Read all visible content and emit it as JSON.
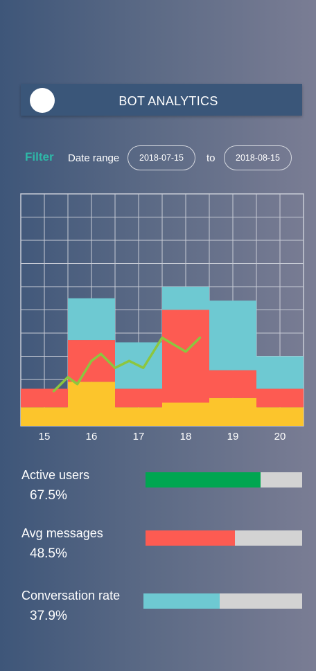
{
  "header": {
    "title": "BOT ANALYTICS"
  },
  "filter": {
    "label": "Filter",
    "range_label": "Date range",
    "start_date": "2018-07-15",
    "to_label": "to",
    "end_date": "2018-08-15"
  },
  "colors": {
    "segment_bottom": "#fcc52c",
    "segment_middle": "#fd5b52",
    "segment_top": "#6ec9d2",
    "line": "#8cc63f",
    "grid": "#c8ccd6"
  },
  "chart_data": {
    "type": "bar",
    "stacked": true,
    "categories": [
      "15",
      "16",
      "17",
      "18",
      "19",
      "20"
    ],
    "series": [
      {
        "values": [
          8,
          19,
          8,
          10,
          12,
          8
        ]
      },
      {
        "values": [
          8,
          18,
          8,
          40,
          12,
          8
        ]
      },
      {
        "values": [
          0,
          18,
          20,
          10,
          30,
          14
        ]
      }
    ],
    "line_points": [
      {
        "x": 15.2,
        "y": 15
      },
      {
        "x": 15.5,
        "y": 21
      },
      {
        "x": 15.7,
        "y": 18
      },
      {
        "x": 16.0,
        "y": 28
      },
      {
        "x": 16.2,
        "y": 31
      },
      {
        "x": 16.5,
        "y": 25
      },
      {
        "x": 16.8,
        "y": 28
      },
      {
        "x": 17.1,
        "y": 25
      },
      {
        "x": 17.5,
        "y": 38
      },
      {
        "x": 18.0,
        "y": 32
      },
      {
        "x": 18.3,
        "y": 38
      }
    ],
    "ylim": [
      0,
      100
    ],
    "grid": true
  },
  "metrics": [
    {
      "label": "Active users",
      "value": "67.5%",
      "fraction": 0.735,
      "color": "#00a651"
    },
    {
      "label": "Avg messages",
      "value": "48.5%",
      "fraction": 0.57,
      "color": "#fd5b52"
    },
    {
      "label": "Conversation rate",
      "value": "37.9%",
      "fraction": 0.48,
      "color": "#6ec9d2"
    }
  ]
}
